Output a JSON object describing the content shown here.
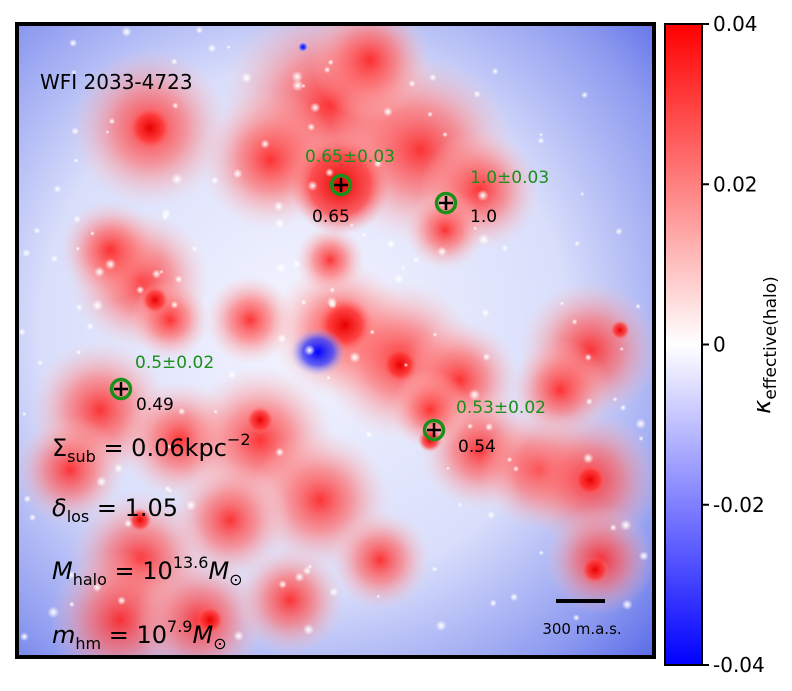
{
  "chart_data": {
    "type": "heatmap",
    "title": "WFI 2033-4723",
    "colorbar": {
      "label": "κ",
      "label_sub": "effective(halo)",
      "ticks": [
        "0.04",
        "0.02",
        "0",
        "-0.02",
        "-0.04"
      ],
      "tick_values": [
        0.04,
        0.02,
        0,
        -0.02,
        -0.04
      ],
      "range": [
        -0.04,
        0.04
      ],
      "colormap": "bwr"
    },
    "image_markers": [
      {
        "measured": "0.65±0.03",
        "model": "0.65",
        "measured_value": 0.65,
        "measured_err": 0.03,
        "model_value": 0.65
      },
      {
        "measured": "1.0±0.03",
        "model": "1.0",
        "measured_value": 1.0,
        "measured_err": 0.03,
        "model_value": 1.0
      },
      {
        "measured": "0.5±0.02",
        "model": "0.49",
        "measured_value": 0.5,
        "measured_err": 0.02,
        "model_value": 0.49
      },
      {
        "measured": "0.53±0.02",
        "model": "0.54",
        "measured_value": 0.53,
        "measured_err": 0.02,
        "model_value": 0.54
      }
    ],
    "parameters": [
      {
        "symbol": "Σ",
        "sub": "sub",
        "sup": "",
        "rest": " = 0.06kpc",
        "rest_sup": "−2",
        "tail": "",
        "tail_sub": ""
      },
      {
        "symbol": "δ",
        "sub": "los",
        "sup": "",
        "rest": " = 1.05",
        "rest_sup": "",
        "tail": "",
        "tail_sub": ""
      },
      {
        "symbol": "M",
        "sub": "halo",
        "sup": "",
        "rest": " = 10",
        "rest_sup": "13.6",
        "tail": "M",
        "tail_sub": "⊙"
      },
      {
        "symbol": "m",
        "sub": "hm",
        "sup": "",
        "rest": " = 10",
        "rest_sup": "7.9",
        "tail": "M",
        "tail_sub": "⊙"
      }
    ],
    "scale_bar": {
      "label": "300 m.a.s."
    }
  },
  "colors": {
    "positive": "#ff0000",
    "neutral": "#ffffff",
    "negative": "#0000ff",
    "measured_text": "#1a8f1a",
    "marker_ring": "#1a8f1a",
    "frame": "#000000"
  }
}
